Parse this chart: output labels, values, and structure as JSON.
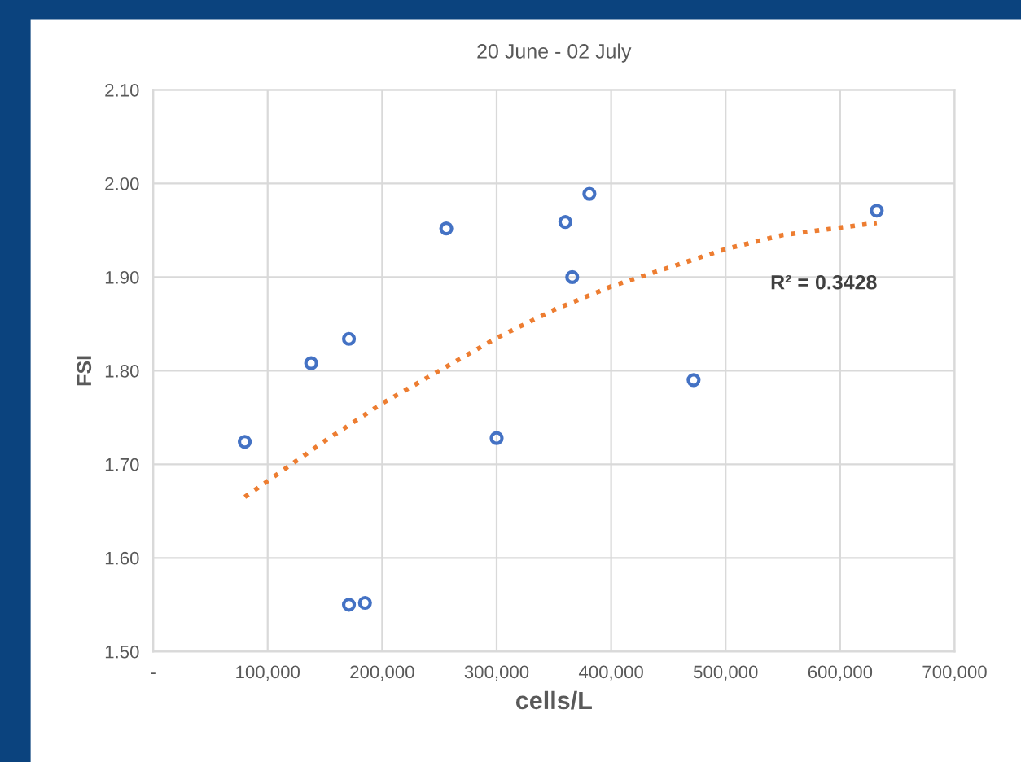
{
  "chart_data": {
    "type": "scatter",
    "title": "20 June - 02 July",
    "xlabel": "cells/L",
    "ylabel": "FSI",
    "xlim": [
      0,
      700000
    ],
    "xticks": [
      {
        "value": 0,
        "label": "-"
      },
      {
        "value": 100000,
        "label": "100,000"
      },
      {
        "value": 200000,
        "label": "200,000"
      },
      {
        "value": 300000,
        "label": "300,000"
      },
      {
        "value": 400000,
        "label": "400,000"
      },
      {
        "value": 500000,
        "label": "500,000"
      },
      {
        "value": 600000,
        "label": "600,000"
      },
      {
        "value": 700000,
        "label": "700,000"
      }
    ],
    "ylim": [
      1.5,
      2.1
    ],
    "yticks": [
      {
        "value": 1.5,
        "label": "1.50"
      },
      {
        "value": 1.6,
        "label": "1.60"
      },
      {
        "value": 1.7,
        "label": "1.70"
      },
      {
        "value": 1.8,
        "label": "1.80"
      },
      {
        "value": 1.9,
        "label": "1.90"
      },
      {
        "value": 2.0,
        "label": "2.00"
      },
      {
        "value": 2.1,
        "label": "2.10"
      }
    ],
    "grid": true,
    "legend": false,
    "marker": "circle",
    "annotations": [
      "R² = 0.3428"
    ],
    "series": [
      {
        "color": "#4472c4",
        "x": [
          80000,
          138000,
          171000,
          171000,
          185000,
          256000,
          300000,
          360000,
          366000,
          381000,
          472000,
          632000
        ],
        "values": [
          1.724,
          1.808,
          1.834,
          1.55,
          1.552,
          1.952,
          1.728,
          1.959,
          1.9,
          1.989,
          1.79,
          1.971
        ]
      },
      {
        "type": "line",
        "color": "#ed7d31",
        "line_style": "dotted",
        "marker": "none",
        "x": [
          80000,
          150000,
          200000,
          250000,
          300000,
          350000,
          400000,
          450000,
          500000,
          550000,
          632000
        ],
        "values": [
          1.665,
          1.725,
          1.765,
          1.8,
          1.835,
          1.865,
          1.89,
          1.91,
          1.93,
          1.945,
          1.958
        ]
      }
    ]
  }
}
